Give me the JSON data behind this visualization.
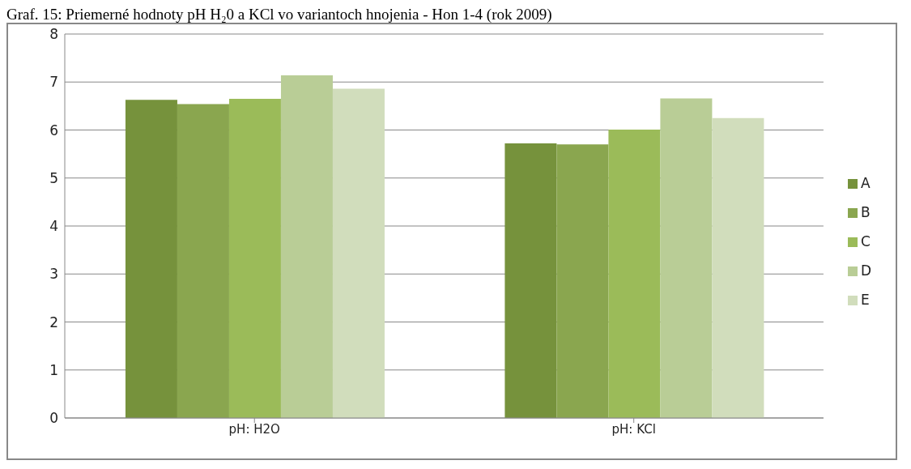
{
  "chart_data": {
    "type": "bar",
    "title": "Graf. 15: Priemerné hodnoty pH H₂0 a KCl vo variantoch hnojenia - Hon 1-4 (rok 2009)",
    "categories": [
      "pH: H2O",
      "pH: KCl"
    ],
    "series": [
      {
        "name": "A",
        "color": "#76923c",
        "values": [
          6.63,
          5.72
        ]
      },
      {
        "name": "B",
        "color": "#8aa64f",
        "values": [
          6.54,
          5.7
        ]
      },
      {
        "name": "C",
        "color": "#9bbb59",
        "values": [
          6.65,
          6.01
        ]
      },
      {
        "name": "D",
        "color": "#b9cd96",
        "values": [
          7.14,
          6.66
        ]
      },
      {
        "name": "E",
        "color": "#d1ddbc",
        "values": [
          6.86,
          6.25
        ]
      }
    ],
    "ylim": [
      0,
      8
    ],
    "yticks": [
      0,
      1,
      2,
      3,
      4,
      5,
      6,
      7,
      8
    ],
    "grid": "y",
    "legend": "right"
  }
}
